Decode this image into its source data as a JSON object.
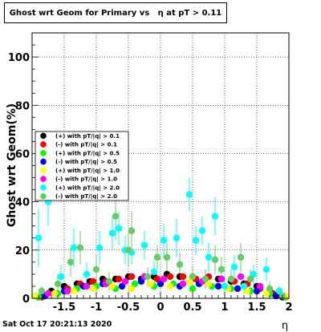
{
  "title": "Ghost wrt Geom for Primary vs   η at pT > 0.11",
  "footer_date": "Sat Oct 17 20:21:13 2020",
  "chart_data": {
    "type": "scatter",
    "title": "Ghost wrt Geom for Primary vs   η at pT > 0.11",
    "xlabel": "η",
    "ylabel": "Ghost wrt Geom(%)",
    "xlim": [
      -2.0,
      2.0
    ],
    "ylim": [
      0,
      110
    ],
    "xticks": [
      -1.5,
      -1,
      -0.5,
      0,
      0.5,
      1,
      1.5,
      2
    ],
    "xtick_labels": [
      "-1.5",
      "-1",
      "-0.5",
      "0",
      "0.5",
      "1",
      "1.5",
      "2"
    ],
    "yticks": [
      0,
      20,
      40,
      60,
      80,
      100
    ],
    "ytick_labels": [
      "0",
      "20",
      "40",
      "60",
      "80",
      "100"
    ],
    "grid": true,
    "legend_position": "center-left",
    "series": [
      {
        "name": "(+) with pT/|q| > 0.1",
        "color": "#000000",
        "x": [
          -1.9,
          -1.7,
          -1.5,
          -1.3,
          -1.1,
          -0.9,
          -0.7,
          -0.5,
          -0.3,
          -0.1,
          0.1,
          0.3,
          0.5,
          0.7,
          0.9,
          1.1,
          1.3,
          1.5,
          1.7,
          1.9
        ],
        "y": [
          0.5,
          3,
          5,
          6,
          7,
          8,
          8,
          9,
          8,
          9,
          10,
          9,
          9,
          8,
          8,
          7,
          6,
          5,
          3,
          0.5
        ],
        "err": [
          0.5,
          1,
          1,
          1,
          1,
          1,
          1,
          1,
          1,
          1,
          1,
          1,
          1,
          1,
          1,
          1,
          1,
          1,
          1,
          0.5
        ]
      },
      {
        "name": "(-) with pT/|q| > 0.1",
        "color": "#ff0000",
        "x": [
          -1.85,
          -1.65,
          -1.45,
          -1.25,
          -1.05,
          -0.85,
          -0.65,
          -0.45,
          -0.25,
          -0.05,
          0.15,
          0.35,
          0.55,
          0.75,
          0.95,
          1.15,
          1.35,
          1.55,
          1.75,
          1.95
        ],
        "y": [
          0.5,
          2,
          4,
          6,
          7,
          7,
          8,
          9,
          9,
          8,
          9,
          9,
          8,
          9,
          8,
          7,
          6,
          4,
          2,
          0.5
        ],
        "err": [
          0.5,
          1,
          1,
          1,
          1,
          1,
          1,
          1,
          1,
          1,
          1,
          1,
          1,
          1,
          1,
          1,
          1,
          1,
          1,
          0.5
        ]
      },
      {
        "name": "(+) with pT/|q| > 0.5",
        "color": "#00ff00",
        "x": [
          -1.9,
          -1.6,
          -1.3,
          -1.0,
          -0.7,
          -0.4,
          -0.1,
          0.2,
          0.5,
          0.8,
          1.1,
          1.4,
          1.7,
          1.95
        ],
        "y": [
          0.5,
          2,
          4,
          5,
          4,
          6,
          5,
          6,
          4,
          5,
          4,
          3,
          2,
          0.5
        ],
        "err": [
          0.5,
          1,
          1,
          1,
          1,
          1,
          1,
          1,
          1,
          1,
          1,
          1,
          1,
          0.5
        ]
      },
      {
        "name": "(-) with pT/|q| > 0.5",
        "color": "#0000ff",
        "x": [
          -1.8,
          -1.5,
          -1.2,
          -0.9,
          -0.6,
          -0.3,
          0.0,
          0.3,
          0.6,
          0.9,
          1.2,
          1.5,
          1.8
        ],
        "y": [
          1,
          3,
          5,
          6,
          5,
          7,
          6,
          5,
          6,
          5,
          4,
          3,
          1
        ],
        "err": [
          1,
          1,
          1,
          1,
          1,
          1,
          1,
          1,
          1,
          1,
          1,
          1,
          1
        ]
      },
      {
        "name": "(+) with pT/|q| > 1.0",
        "color": "#ffff00",
        "x": [
          -1.95,
          -1.65,
          -1.35,
          -1.05,
          -0.75,
          -0.45,
          -0.15,
          0.15,
          0.45,
          0.75,
          1.05,
          1.35,
          1.65,
          1.95
        ],
        "y": [
          1,
          2,
          3,
          4,
          5,
          4,
          6,
          5,
          7,
          6,
          4,
          3,
          2,
          1
        ],
        "err": [
          1,
          1,
          1,
          1,
          1,
          1,
          1,
          1,
          1,
          1,
          1,
          1,
          1,
          1
        ]
      },
      {
        "name": "(-) with pT/|q| > 1.0",
        "color": "#ff00ff",
        "x": [
          -1.75,
          -1.45,
          -1.15,
          -0.85,
          -0.55,
          -0.25,
          0.05,
          0.35,
          0.65,
          0.95,
          1.25,
          1.55,
          1.85
        ],
        "y": [
          2,
          3,
          5,
          6,
          7,
          9,
          8,
          6,
          7,
          8,
          9,
          5,
          3
        ],
        "err": [
          1,
          1,
          1,
          1,
          1,
          1,
          1,
          1,
          1,
          1,
          1,
          1,
          1
        ]
      },
      {
        "name": "(+) with pT/|q| > 2.0",
        "color": "#00ffff",
        "x": [
          -1.9,
          -1.75,
          -1.55,
          -1.35,
          -1.15,
          -0.95,
          -0.75,
          -0.65,
          -0.55,
          -0.45,
          -0.25,
          -0.1,
          0.05,
          0.25,
          0.45,
          0.55,
          0.65,
          0.75,
          0.85,
          1.0,
          1.15,
          1.3,
          1.45,
          1.65,
          1.85
        ],
        "y": [
          25,
          40,
          9,
          21,
          10,
          21,
          27,
          29,
          20,
          19,
          22,
          11,
          24,
          25,
          43,
          24,
          28,
          17,
          34,
          5,
          13,
          5,
          10,
          12,
          3
        ],
        "err": [
          12,
          10,
          5,
          8,
          5,
          7,
          7,
          7,
          6,
          5,
          6,
          5,
          7,
          8,
          7,
          6,
          6,
          6,
          8,
          3,
          5,
          3,
          4,
          5,
          2
        ]
      },
      {
        "name": "(-) with pT/|q| > 2.0",
        "color": "#66cc66",
        "x": [
          -1.85,
          -1.6,
          -1.4,
          -1.25,
          -1.0,
          -0.8,
          -0.7,
          -0.5,
          -0.45,
          -0.2,
          -0.05,
          0.1,
          0.3,
          0.5,
          0.7,
          0.85,
          0.95,
          1.1,
          1.25,
          1.4,
          1.7,
          1.9
        ],
        "y": [
          3,
          6,
          15,
          21,
          12,
          7,
          34,
          20,
          28,
          9,
          17,
          17,
          14,
          9,
          8,
          16,
          12,
          8,
          17,
          8,
          4,
          1
        ],
        "err": [
          2,
          4,
          6,
          7,
          6,
          4,
          10,
          7,
          8,
          4,
          5,
          6,
          5,
          4,
          4,
          6,
          5,
          4,
          6,
          4,
          3,
          1
        ]
      }
    ]
  }
}
